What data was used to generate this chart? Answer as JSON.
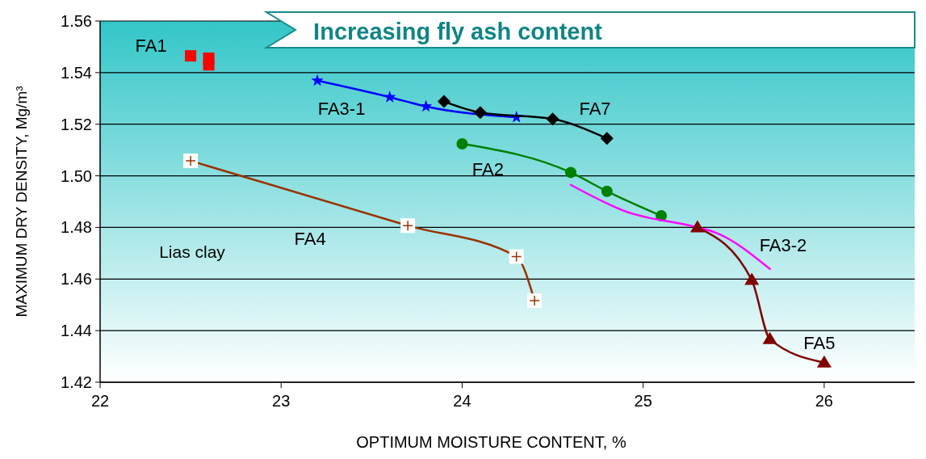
{
  "chart_data": {
    "type": "line",
    "xlabel": "OPTIMUM MOISTURE CONTENT, %",
    "ylabel": "MAXIMUM DRY DENSITY, Mg/m³",
    "xlim": [
      22,
      26.5
    ],
    "xticks": [
      22,
      23,
      24,
      25,
      26
    ],
    "ylim": [
      1.42,
      1.56
    ],
    "yticks": [
      {
        "value": 1.42,
        "label": "1.42"
      },
      {
        "value": 1.44,
        "label": "1.44"
      },
      {
        "value": 1.46,
        "label": "1.46"
      },
      {
        "value": 1.48,
        "label": "1.48"
      },
      {
        "value": 1.5,
        "label": "1.50"
      },
      {
        "value": 1.52,
        "label": "1.52"
      },
      {
        "value": 1.54,
        "label": "1.54"
      },
      {
        "value": 1.56,
        "label": "1.56"
      }
    ],
    "grid": "y",
    "annotations": [
      "Increasing fly ash content",
      "Lias clay"
    ],
    "series": [
      {
        "name": "FA1",
        "type": "scatter",
        "marker": "square",
        "color": "#ff0000",
        "x": [
          22.5,
          22.6,
          22.6
        ],
        "values": [
          1.5465,
          1.5456,
          1.543
        ]
      },
      {
        "name": "FA3-1",
        "marker": "star",
        "color": "#0000ff",
        "x": [
          23.2,
          23.6,
          23.8,
          24.3
        ],
        "values": [
          1.5369,
          1.5305,
          1.5269,
          1.5227
        ]
      },
      {
        "name": "FA7",
        "marker": "diamond",
        "color": "#000000",
        "x": [
          23.9,
          24.1,
          24.5,
          24.8
        ],
        "values": [
          1.5288,
          1.5245,
          1.522,
          1.5145
        ]
      },
      {
        "name": "FA2",
        "marker": "circle",
        "color": "#008000",
        "x": [
          24.0,
          24.6,
          24.8,
          25.1
        ],
        "values": [
          1.5124,
          1.5013,
          1.494,
          1.4845
        ]
      },
      {
        "name": "FA3-2",
        "marker": "none",
        "color": "#ff00ff",
        "x": [
          24.6,
          24.9,
          25.3,
          25.4,
          25.7
        ],
        "values": [
          1.4965,
          1.4863,
          1.48,
          1.478,
          1.4639
        ]
      },
      {
        "name": "FA4",
        "marker": "cross",
        "color": "#993300",
        "x": [
          22.5,
          23.7,
          24.3,
          24.4
        ],
        "values": [
          1.5058,
          1.4807,
          1.4687,
          1.4516
        ]
      },
      {
        "name": "FA5",
        "marker": "triangle",
        "color": "#800000",
        "x": [
          25.3,
          25.6,
          25.7,
          26.0
        ],
        "values": [
          1.48,
          1.4596,
          1.4367,
          1.4276
        ]
      }
    ]
  }
}
